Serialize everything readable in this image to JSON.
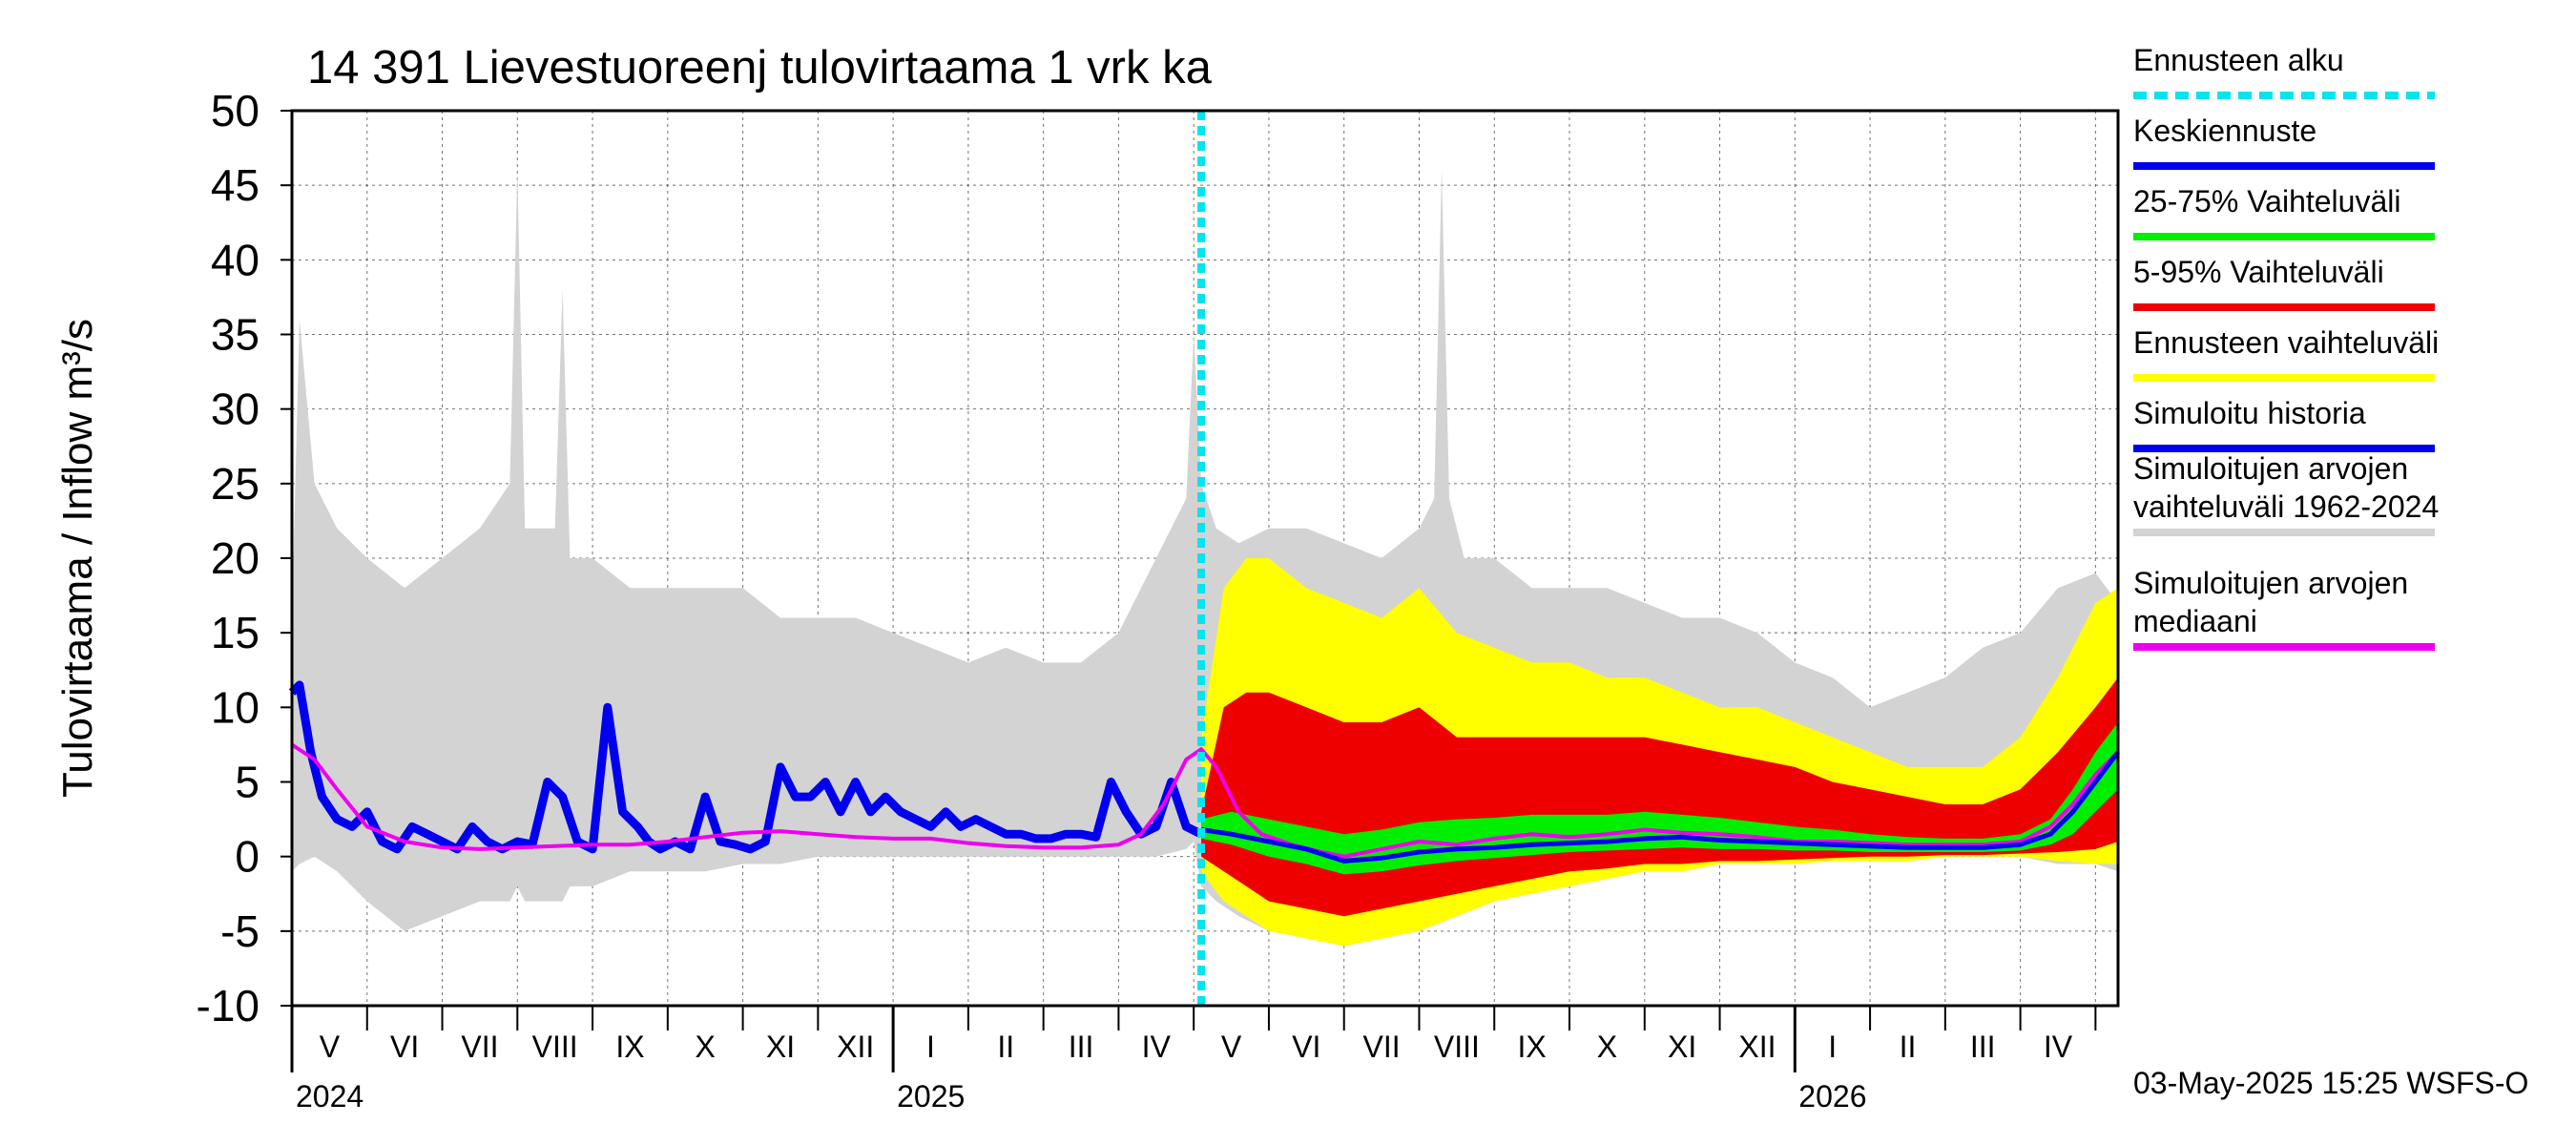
{
  "chart_data": {
    "type": "line",
    "title": "14 391 Lievestuoreenj tulovirtaama 1 vrk ka",
    "ylabel": "Tulovirtaama / Inflow   m³/s",
    "ylim": [
      -10,
      50
    ],
    "yticks": [
      "50",
      "45",
      "40",
      "35",
      "30",
      "25",
      "20",
      "15",
      "10",
      "5",
      "0",
      "-5",
      "-10"
    ],
    "x_range_months": [
      0,
      24.3
    ],
    "forecast_start_month": 12.1,
    "month_labels": [
      {
        "label": "V",
        "m": 0.5
      },
      {
        "label": "VI",
        "m": 1.5
      },
      {
        "label": "VII",
        "m": 2.5
      },
      {
        "label": "VIII",
        "m": 3.5
      },
      {
        "label": "IX",
        "m": 4.5
      },
      {
        "label": "X",
        "m": 5.5
      },
      {
        "label": "XI",
        "m": 6.5
      },
      {
        "label": "XII",
        "m": 7.5
      },
      {
        "label": "I",
        "m": 8.5
      },
      {
        "label": "II",
        "m": 9.5
      },
      {
        "label": "III",
        "m": 10.5
      },
      {
        "label": "IV",
        "m": 11.5
      },
      {
        "label": "V",
        "m": 12.5
      },
      {
        "label": "VI",
        "m": 13.5
      },
      {
        "label": "VII",
        "m": 14.5
      },
      {
        "label": "VIII",
        "m": 15.5
      },
      {
        "label": "IX",
        "m": 16.5
      },
      {
        "label": "X",
        "m": 17.5
      },
      {
        "label": "XI",
        "m": 18.5
      },
      {
        "label": "XII",
        "m": 19.5
      },
      {
        "label": "I",
        "m": 20.5
      },
      {
        "label": "II",
        "m": 21.5
      },
      {
        "label": "III",
        "m": 22.5
      },
      {
        "label": "IV",
        "m": 23.5
      }
    ],
    "year_labels": [
      {
        "label": "2024",
        "m": 0
      },
      {
        "label": "2025",
        "m": 8
      },
      {
        "label": "2026",
        "m": 20
      }
    ],
    "legend": [
      {
        "label": "Ennusteen alku",
        "color": "#00e5ee",
        "style": "dashed"
      },
      {
        "label": "Keskiennuste",
        "color": "#0000ee",
        "style": "solid"
      },
      {
        "label": "25-75% Vaihteluväli",
        "color": "#00ee00",
        "style": "solid"
      },
      {
        "label": "5-95% Vaihteluväli",
        "color": "#ee0000",
        "style": "solid"
      },
      {
        "label": "Ennusteen vaihteluväli",
        "color": "#ffff00",
        "style": "solid"
      },
      {
        "label": "Simuloitu historia",
        "color": "#0000ee",
        "style": "solid"
      },
      {
        "label": "Simuloitujen arvojen vaihteluväli 1962-2024",
        "line1": "Simuloitujen arvojen",
        "line2": "vaihteluväli 1962-2024",
        "color": "#d3d3d3",
        "style": "solid"
      },
      {
        "label": "Simuloitujen arvojen mediaani",
        "line1": "Simuloitujen arvojen",
        "line2": "mediaani",
        "color": "#ee00ee",
        "style": "solid"
      }
    ],
    "series": [
      {
        "name": "Simuloitu historia",
        "color": "#0000ee",
        "x": [
          0,
          0.1,
          0.25,
          0.4,
          0.6,
          0.8,
          1.0,
          1.2,
          1.4,
          1.6,
          1.8,
          2.0,
          2.2,
          2.4,
          2.6,
          2.8,
          3.0,
          3.2,
          3.4,
          3.6,
          3.8,
          4.0,
          4.2,
          4.4,
          4.6,
          4.75,
          4.9,
          5.1,
          5.3,
          5.5,
          5.7,
          5.9,
          6.1,
          6.3,
          6.5,
          6.7,
          6.9,
          7.1,
          7.3,
          7.5,
          7.7,
          7.9,
          8.1,
          8.3,
          8.5,
          8.7,
          8.9,
          9.1,
          9.3,
          9.5,
          9.7,
          9.9,
          10.1,
          10.3,
          10.5,
          10.7,
          10.9,
          11.1,
          11.3,
          11.5,
          11.7,
          11.9,
          12.1
        ],
        "values": [
          11,
          11.5,
          7,
          4,
          2.5,
          2,
          3,
          1,
          0.5,
          2,
          1.5,
          1,
          0.5,
          2,
          1,
          0.5,
          1,
          0.8,
          5,
          4,
          1,
          0.5,
          10,
          3,
          2,
          1,
          0.5,
          1,
          0.5,
          4,
          1,
          0.8,
          0.5,
          1,
          6,
          4,
          4,
          5,
          3,
          5,
          3,
          4,
          3,
          2.5,
          2,
          3,
          2,
          2.5,
          2,
          1.5,
          1.5,
          1.2,
          1.2,
          1.5,
          1.5,
          1.3,
          5,
          3,
          1.5,
          2,
          5,
          2,
          1.5
        ]
      },
      {
        "name": "Simuloitujen arvojen mediaani",
        "color": "#ee00ee",
        "x": [
          0,
          0.3,
          0.6,
          1.0,
          1.5,
          2.0,
          2.5,
          3.0,
          3.5,
          4.0,
          4.5,
          5.0,
          5.5,
          6.0,
          6.5,
          7.0,
          7.5,
          8.0,
          8.5,
          9.0,
          9.5,
          10.0,
          10.5,
          11.0,
          11.3,
          11.6,
          11.9,
          12.1,
          12.3,
          12.6,
          12.9,
          13.3,
          13.7,
          14.0,
          14.5,
          15.0,
          15.5,
          16.0,
          16.5,
          17.0,
          17.5,
          18.0,
          18.5,
          19.0,
          19.5,
          20.0,
          20.5,
          21.0,
          21.5,
          22.0,
          22.5,
          23.0,
          23.4,
          23.7,
          24.0,
          24.3
        ],
        "values": [
          7.5,
          6.5,
          4.5,
          2.0,
          1.0,
          0.6,
          0.5,
          0.6,
          0.7,
          0.8,
          0.8,
          1.0,
          1.3,
          1.6,
          1.7,
          1.5,
          1.3,
          1.2,
          1.2,
          0.9,
          0.7,
          0.6,
          0.6,
          0.8,
          1.5,
          3.5,
          6.5,
          7.2,
          6.0,
          3.0,
          1.5,
          0.8,
          0.3,
          0.0,
          0.5,
          1.0,
          0.8,
          1.2,
          1.5,
          1.3,
          1.5,
          1.8,
          1.6,
          1.5,
          1.3,
          1.0,
          1.0,
          0.9,
          0.8,
          0.8,
          0.8,
          1.0,
          2.0,
          3.5,
          5.5,
          7.0
        ]
      },
      {
        "name": "Keskiennuste",
        "color": "#0000ee",
        "x": [
          12.1,
          12.5,
          13.0,
          13.5,
          14.0,
          14.5,
          15.0,
          15.5,
          16.0,
          16.5,
          17.0,
          17.5,
          18.0,
          18.5,
          19.0,
          19.5,
          20.0,
          20.5,
          21.0,
          21.5,
          22.0,
          22.5,
          23.0,
          23.4,
          23.7,
          24.0,
          24.3
        ],
        "values": [
          1.8,
          1.5,
          1.0,
          0.5,
          -0.3,
          -0.1,
          0.3,
          0.5,
          0.6,
          0.8,
          0.9,
          1.0,
          1.2,
          1.3,
          1.1,
          1.0,
          0.9,
          0.8,
          0.7,
          0.6,
          0.6,
          0.6,
          0.8,
          1.5,
          3.0,
          5.0,
          7.0
        ]
      }
    ],
    "bands": [
      {
        "name": "Simuloitujen arvojen vaihteluväli 1962-2024",
        "color": "#d3d3d3",
        "x": [
          0,
          0.1,
          0.3,
          0.6,
          1.0,
          1.5,
          2.0,
          2.5,
          2.9,
          3.0,
          3.1,
          3.5,
          3.6,
          3.7,
          4.0,
          4.5,
          5.0,
          5.5,
          6.0,
          6.5,
          7.0,
          7.5,
          8.0,
          8.5,
          9.0,
          9.5,
          10.0,
          10.5,
          11.0,
          11.5,
          11.9,
          12.0,
          12.1,
          12.3,
          12.6,
          13.0,
          13.5,
          14.0,
          14.5,
          15.0,
          15.2,
          15.3,
          15.4,
          15.6,
          16.0,
          16.5,
          17.0,
          17.5,
          18.0,
          18.5,
          19.0,
          19.5,
          20.0,
          20.5,
          21.0,
          21.5,
          22.0,
          22.5,
          23.0,
          23.5,
          24.0,
          24.3
        ],
        "low": [
          -1,
          -0.5,
          0,
          -1,
          -3,
          -5,
          -4,
          -3,
          -3,
          -2,
          -3,
          -3,
          -3,
          -2,
          -2,
          -1,
          -1,
          -1,
          -0.5,
          -0.5,
          0,
          0,
          0,
          0,
          0,
          0,
          0,
          0,
          0,
          0,
          0.5,
          1,
          -2,
          -3,
          -4,
          -5,
          -5,
          -5,
          -5,
          -5,
          -4,
          -4,
          -4,
          -3,
          -2.5,
          -1.5,
          -1,
          -0.5,
          -0.5,
          -0.5,
          -0.3,
          -0.3,
          -0.3,
          -0.3,
          -0.3,
          0,
          0,
          0,
          0,
          -0.5,
          -0.5,
          -1
        ],
        "high": [
          16,
          36,
          25,
          22,
          20,
          18,
          20,
          22,
          25,
          46,
          22,
          22,
          38,
          20,
          20,
          18,
          18,
          18,
          18,
          16,
          16,
          16,
          15,
          14,
          13,
          14,
          13,
          13,
          15,
          20,
          24,
          35,
          25,
          22,
          21,
          22,
          22,
          21,
          20,
          22,
          24,
          46,
          24,
          20,
          20,
          18,
          18,
          18,
          17,
          16,
          16,
          15,
          13,
          12,
          10,
          11,
          12,
          14,
          15,
          18,
          19,
          17
        ]
      },
      {
        "name": "Ennusteen vaihteluväli",
        "color": "#ffff00",
        "x": [
          12.1,
          12.4,
          12.7,
          13.0,
          13.5,
          14.0,
          14.5,
          15.0,
          15.5,
          16.0,
          16.5,
          17.0,
          17.5,
          18.0,
          18.5,
          19.0,
          19.5,
          20.0,
          20.5,
          21.0,
          21.5,
          22.0,
          22.5,
          23.0,
          23.5,
          24.0,
          24.3
        ],
        "low": [
          -1,
          -3,
          -4,
          -5,
          -5.5,
          -6,
          -5.5,
          -5,
          -4,
          -3,
          -2.5,
          -2,
          -1.5,
          -1,
          -1,
          -0.5,
          -0.5,
          -0.5,
          -0.3,
          -0.3,
          -0.3,
          0,
          0,
          0,
          -0.3,
          -0.5,
          -0.5
        ],
        "high": [
          8,
          18,
          20,
          20,
          18,
          17,
          16,
          18,
          15,
          14,
          13,
          13,
          12,
          12,
          11,
          10,
          10,
          9,
          8,
          7,
          6,
          6,
          6,
          8,
          12,
          17,
          18
        ]
      },
      {
        "name": "5-95% Vaihteluväli",
        "color": "#ee0000",
        "x": [
          12.1,
          12.4,
          12.7,
          13.0,
          13.5,
          14.0,
          14.5,
          15.0,
          15.5,
          16.0,
          16.5,
          17.0,
          17.5,
          18.0,
          18.5,
          19.0,
          19.5,
          20.0,
          20.5,
          21.0,
          21.5,
          22.0,
          22.5,
          23.0,
          23.5,
          24.0,
          24.3
        ],
        "low": [
          0,
          -1,
          -2,
          -3,
          -3.5,
          -4,
          -3.5,
          -3,
          -2.5,
          -2,
          -1.5,
          -1,
          -0.8,
          -0.5,
          -0.5,
          -0.3,
          -0.3,
          -0.2,
          -0.1,
          0,
          0,
          0.1,
          0.1,
          0.2,
          0.3,
          0.5,
          1
        ],
        "high": [
          3,
          10,
          11,
          11,
          10,
          9,
          9,
          10,
          8,
          8,
          8,
          8,
          8,
          8,
          7.5,
          7,
          6.5,
          6,
          5,
          4.5,
          4,
          3.5,
          3.5,
          4.5,
          7,
          10,
          12
        ]
      },
      {
        "name": "25-75% Vaihteluväli",
        "color": "#00ee00",
        "x": [
          12.1,
          12.5,
          13.0,
          13.5,
          14.0,
          14.5,
          15.0,
          15.5,
          16.0,
          16.5,
          17.0,
          17.5,
          18.0,
          18.5,
          19.0,
          19.5,
          20.0,
          20.5,
          21.0,
          21.5,
          22.0,
          22.5,
          23.0,
          23.4,
          23.7,
          24.0,
          24.3
        ],
        "low": [
          1.2,
          0.8,
          0.0,
          -0.5,
          -1.2,
          -1.0,
          -0.6,
          -0.3,
          -0.1,
          0.1,
          0.3,
          0.4,
          0.5,
          0.6,
          0.5,
          0.5,
          0.4,
          0.4,
          0.3,
          0.3,
          0.3,
          0.3,
          0.4,
          0.8,
          1.5,
          3.0,
          4.5
        ],
        "high": [
          2.5,
          3.0,
          2.5,
          2.0,
          1.5,
          1.8,
          2.3,
          2.5,
          2.6,
          2.8,
          2.8,
          2.8,
          3.0,
          2.8,
          2.6,
          2.3,
          2.0,
          1.8,
          1.5,
          1.3,
          1.2,
          1.2,
          1.5,
          2.5,
          4.5,
          7.0,
          9.0
        ]
      }
    ],
    "timestamp": "03-May-2025 15:25 WSFS-O"
  }
}
